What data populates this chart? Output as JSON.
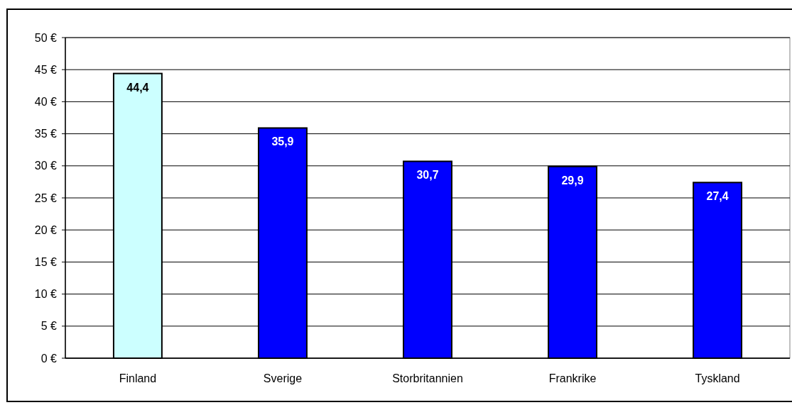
{
  "chart_data": {
    "type": "bar",
    "categories": [
      "Finland",
      "Sverige",
      "Storbritannien",
      "Frankrike",
      "Tyskland"
    ],
    "values": [
      44.4,
      35.9,
      30.7,
      29.9,
      27.4
    ],
    "colors": [
      "#ccffff",
      "#0000ff",
      "#0000ff",
      "#0000ff",
      "#0000ff"
    ],
    "value_labels": [
      "44,4",
      "35,9",
      "30,7",
      "29,9",
      "27,4"
    ],
    "ylim": [
      0,
      50
    ],
    "yticks": [
      {
        "value": 0,
        "label": "0 €"
      },
      {
        "value": 5,
        "label": "5 €"
      },
      {
        "value": 10,
        "label": "10 €"
      },
      {
        "value": 15,
        "label": "15 €"
      },
      {
        "value": 20,
        "label": "20 €"
      },
      {
        "value": 25,
        "label": "25 €"
      },
      {
        "value": 30,
        "label": "30 €"
      },
      {
        "value": 35,
        "label": "35 €"
      },
      {
        "value": 40,
        "label": "40 €"
      },
      {
        "value": 45,
        "label": "45 €"
      },
      {
        "value": 50,
        "label": "50 €"
      }
    ],
    "grid": "y"
  }
}
